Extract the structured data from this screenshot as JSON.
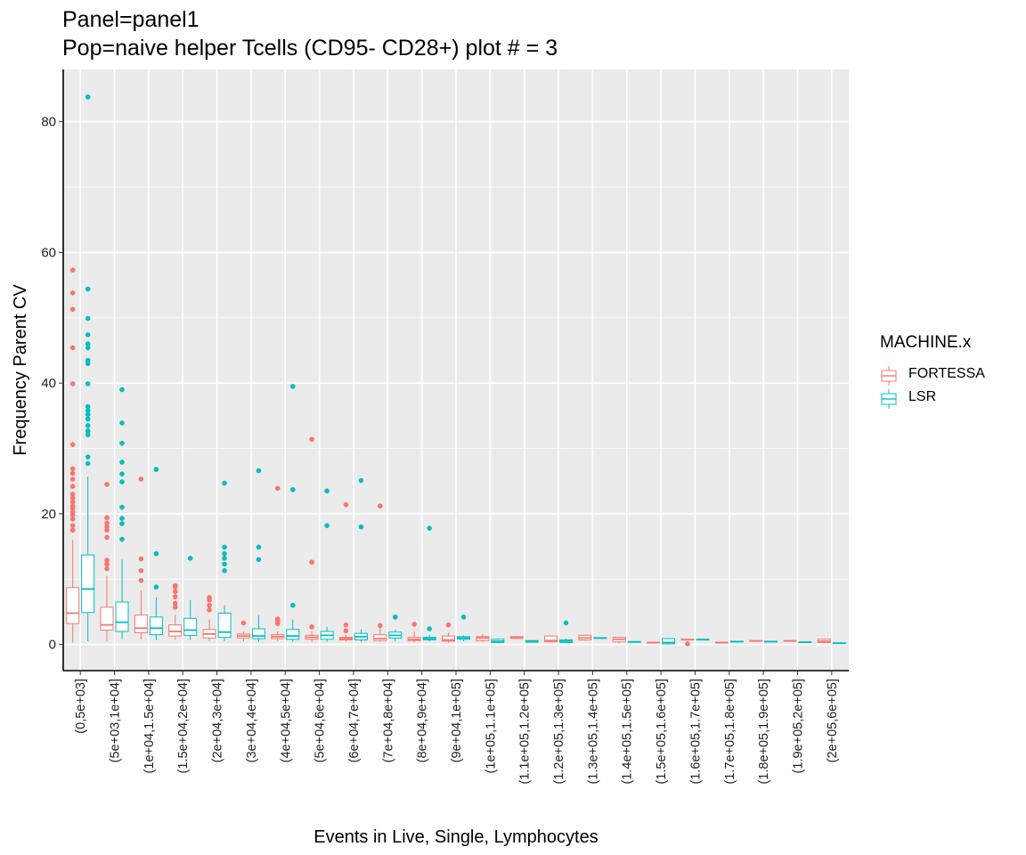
{
  "chart_data": {
    "type": "box",
    "title": "Panel=panel1",
    "subtitle": "Pop=naive helper Tcells (CD95- CD28+) plot # = 3",
    "xlabel": "Events in Live, Single, Lymphocytes",
    "ylabel": "Frequency Parent CV",
    "ylim": [
      -4,
      88
    ],
    "yticks": [
      0,
      20,
      40,
      60,
      80
    ],
    "grid": true,
    "legend": {
      "title": "MACHINE.x",
      "position": "right"
    },
    "categories": [
      "(0,5e+03]",
      "(5e+03,1e+04]",
      "(1e+04,1.5e+04]",
      "(1.5e+04,2e+04]",
      "(2e+04,3e+04]",
      "(3e+04,4e+04]",
      "(4e+04,5e+04]",
      "(5e+04,6e+04]",
      "(6e+04,7e+04]",
      "(7e+04,8e+04]",
      "(8e+04,9e+04]",
      "(9e+04,1e+05]",
      "(1e+05,1.1e+05]",
      "(1.1e+05,1.2e+05]",
      "(1.2e+05,1.3e+05]",
      "(1.3e+05,1.4e+05]",
      "(1.4e+05,1.5e+05]",
      "(1.5e+05,1.6e+05]",
      "(1.6e+05,1.7e+05]",
      "(1.7e+05,1.8e+05]",
      "(1.8e+05,1.9e+05]",
      "(1.9e+05,2e+05]",
      "(2e+05,6e+05]"
    ],
    "series": [
      {
        "name": "FORTESSA",
        "color": "#F8766D",
        "boxes": [
          {
            "cat": 0,
            "min": 0.3,
            "q1": 3.2,
            "median": 4.8,
            "q3": 8.7,
            "max": 16.0,
            "outliers": [
              17.5,
              18.2,
              19.2,
              19.8,
              20.3,
              20.8,
              21.2,
              21.8,
              22.4,
              23.0,
              24.2,
              25.3,
              26.2,
              26.9,
              30.6,
              39.9,
              45.4,
              51.3,
              53.8,
              57.3
            ]
          },
          {
            "cat": 1,
            "min": 0.5,
            "q1": 2.2,
            "median": 3.0,
            "q3": 5.7,
            "max": 10.5,
            "outliers": [
              11.6,
              12.3,
              12.9,
              16.4,
              17.5,
              18.0,
              18.6,
              19.4,
              24.5
            ]
          },
          {
            "cat": 2,
            "min": 0.8,
            "q1": 1.8,
            "median": 2.5,
            "q3": 4.5,
            "max": 8.3,
            "outliers": [
              9.8,
              11.3,
              13.1,
              25.3
            ]
          },
          {
            "cat": 3,
            "min": 0.7,
            "q1": 1.3,
            "median": 2.0,
            "q3": 3.0,
            "max": 4.5,
            "outliers": [
              5.7,
              6.3,
              7.3,
              8.1,
              8.8,
              9.0
            ]
          },
          {
            "cat": 4,
            "min": 0.5,
            "q1": 1.0,
            "median": 1.6,
            "q3": 2.3,
            "max": 3.8,
            "outliers": [
              5.3,
              6.0,
              6.8,
              7.2
            ]
          },
          {
            "cat": 5,
            "min": 0.5,
            "q1": 1.0,
            "median": 1.3,
            "q3": 1.6,
            "max": 2.0,
            "outliers": [
              3.3
            ]
          },
          {
            "cat": 6,
            "min": 0.5,
            "q1": 0.9,
            "median": 1.2,
            "q3": 1.5,
            "max": 2.0,
            "outliers": [
              3.2,
              3.6,
              3.9,
              23.9
            ]
          },
          {
            "cat": 7,
            "min": 0.4,
            "q1": 0.8,
            "median": 1.1,
            "q3": 1.4,
            "max": 2.0,
            "outliers": [
              2.7,
              12.6,
              31.4
            ]
          },
          {
            "cat": 8,
            "min": 0.4,
            "q1": 0.7,
            "median": 0.9,
            "q3": 1.1,
            "max": 1.5,
            "outliers": [
              2.1,
              3.0,
              21.4
            ]
          },
          {
            "cat": 9,
            "min": 0.4,
            "q1": 0.6,
            "median": 0.9,
            "q3": 1.5,
            "max": 2.6,
            "outliers": [
              2.9,
              21.2
            ]
          },
          {
            "cat": 10,
            "min": 0.4,
            "q1": 0.6,
            "median": 0.8,
            "q3": 1.1,
            "max": 2.0,
            "outliers": [
              3.1
            ]
          },
          {
            "cat": 11,
            "min": 0.3,
            "q1": 0.5,
            "median": 0.7,
            "q3": 1.3,
            "max": 1.8,
            "outliers": [
              3.0
            ]
          },
          {
            "cat": 12,
            "min": 0.4,
            "q1": 0.6,
            "median": 1.0,
            "q3": 1.2,
            "max": 1.6,
            "outliers": []
          },
          {
            "cat": 13,
            "min": 0.9,
            "q1": 0.95,
            "median": 1.0,
            "q3": 1.2,
            "max": 1.3,
            "outliers": []
          },
          {
            "cat": 14,
            "min": 0.3,
            "q1": 0.4,
            "median": 0.6,
            "q3": 1.3,
            "max": 1.4,
            "outliers": []
          },
          {
            "cat": 15,
            "min": 0.6,
            "q1": 0.7,
            "median": 1.0,
            "q3": 1.4,
            "max": 1.5,
            "outliers": []
          },
          {
            "cat": 16,
            "min": 0.2,
            "q1": 0.4,
            "median": 0.8,
            "q3": 1.1,
            "max": 1.2,
            "outliers": []
          },
          {
            "cat": 17,
            "min": 0.2,
            "q1": 0.25,
            "median": 0.3,
            "q3": 0.35,
            "max": 0.4,
            "outliers": []
          },
          {
            "cat": 18,
            "min": 0.7,
            "q1": 0.7,
            "median": 0.75,
            "q3": 0.8,
            "max": 0.8,
            "outliers": [
              0.1
            ]
          },
          {
            "cat": 19,
            "min": 0.3,
            "q1": 0.3,
            "median": 0.3,
            "q3": 0.35,
            "max": 0.35,
            "outliers": []
          },
          {
            "cat": 20,
            "min": 0.5,
            "q1": 0.5,
            "median": 0.55,
            "q3": 0.6,
            "max": 0.6,
            "outliers": []
          },
          {
            "cat": 21,
            "min": 0.5,
            "q1": 0.5,
            "median": 0.55,
            "q3": 0.6,
            "max": 0.6,
            "outliers": []
          },
          {
            "cat": 22,
            "min": 0.2,
            "q1": 0.3,
            "median": 0.5,
            "q3": 0.8,
            "max": 0.9,
            "outliers": []
          }
        ]
      },
      {
        "name": "LSR",
        "color": "#00BFC4",
        "boxes": [
          {
            "cat": 0,
            "min": 0.5,
            "q1": 4.9,
            "median": 8.5,
            "q3": 13.7,
            "max": 25.7,
            "outliers": [
              27.7,
              28.7,
              32.1,
              32.7,
              33.5,
              34.5,
              35.2,
              35.8,
              36.4,
              39.9,
              43.0,
              43.5,
              45.4,
              46.0,
              47.4,
              49.9,
              54.4,
              83.8
            ]
          },
          {
            "cat": 1,
            "min": 0.8,
            "q1": 2.0,
            "median": 3.4,
            "q3": 6.5,
            "max": 13.0,
            "outliers": [
              16.1,
              18.5,
              19.3,
              21.0,
              24.9,
              26.1,
              27.9,
              30.8,
              33.9,
              39.0
            ]
          },
          {
            "cat": 2,
            "min": 0.7,
            "q1": 1.5,
            "median": 2.5,
            "q3": 4.2,
            "max": 7.2,
            "outliers": [
              8.8,
              13.9,
              26.8
            ]
          },
          {
            "cat": 3,
            "min": 0.7,
            "q1": 1.4,
            "median": 2.2,
            "q3": 4.0,
            "max": 6.8,
            "outliers": [
              13.2
            ]
          },
          {
            "cat": 4,
            "min": 0.5,
            "q1": 1.1,
            "median": 1.9,
            "q3": 4.8,
            "max": 6.0,
            "outliers": [
              11.3,
              12.3,
              13.2,
              13.9,
              14.9,
              24.7
            ]
          },
          {
            "cat": 5,
            "min": 0.4,
            "q1": 0.9,
            "median": 1.3,
            "q3": 2.4,
            "max": 4.5,
            "outliers": [
              13.0,
              14.9,
              26.6
            ]
          },
          {
            "cat": 6,
            "min": 0.4,
            "q1": 0.8,
            "median": 1.3,
            "q3": 2.3,
            "max": 3.8,
            "outliers": [
              6.0,
              23.7,
              39.5
            ]
          },
          {
            "cat": 7,
            "min": 0.4,
            "q1": 0.8,
            "median": 1.4,
            "q3": 2.0,
            "max": 2.7,
            "outliers": [
              18.2,
              23.5
            ]
          },
          {
            "cat": 8,
            "min": 0.4,
            "q1": 0.7,
            "median": 1.2,
            "q3": 1.7,
            "max": 2.3,
            "outliers": [
              18.0,
              25.1
            ]
          },
          {
            "cat": 9,
            "min": 0.5,
            "q1": 1.0,
            "median": 1.4,
            "q3": 1.9,
            "max": 2.3,
            "outliers": [
              4.2
            ]
          },
          {
            "cat": 10,
            "min": 0.5,
            "q1": 0.7,
            "median": 0.9,
            "q3": 1.1,
            "max": 1.5,
            "outliers": [
              2.4,
              17.8
            ]
          },
          {
            "cat": 11,
            "min": 0.5,
            "q1": 0.8,
            "median": 1.0,
            "q3": 1.2,
            "max": 1.4,
            "outliers": [
              4.2
            ]
          },
          {
            "cat": 12,
            "min": 0.2,
            "q1": 0.3,
            "median": 0.5,
            "q3": 0.8,
            "max": 0.9,
            "outliers": []
          },
          {
            "cat": 13,
            "min": 0.3,
            "q1": 0.35,
            "median": 0.45,
            "q3": 0.6,
            "max": 0.65,
            "outliers": []
          },
          {
            "cat": 14,
            "min": 0.2,
            "q1": 0.3,
            "median": 0.5,
            "q3": 0.7,
            "max": 0.9,
            "outliers": [
              3.3
            ]
          },
          {
            "cat": 15,
            "min": 0.9,
            "q1": 0.95,
            "median": 1.0,
            "q3": 1.05,
            "max": 1.1,
            "outliers": []
          },
          {
            "cat": 16,
            "min": 0.3,
            "q1": 0.35,
            "median": 0.4,
            "q3": 0.45,
            "max": 0.5,
            "outliers": []
          },
          {
            "cat": 17,
            "min": 0.0,
            "q1": 0.1,
            "median": 0.3,
            "q3": 0.9,
            "max": 1.0,
            "outliers": []
          },
          {
            "cat": 18,
            "min": 0.7,
            "q1": 0.7,
            "median": 0.75,
            "q3": 0.8,
            "max": 0.8,
            "outliers": []
          },
          {
            "cat": 19,
            "min": 0.4,
            "q1": 0.4,
            "median": 0.45,
            "q3": 0.5,
            "max": 0.5,
            "outliers": []
          },
          {
            "cat": 20,
            "min": 0.4,
            "q1": 0.4,
            "median": 0.45,
            "q3": 0.5,
            "max": 0.5,
            "outliers": []
          },
          {
            "cat": 21,
            "min": 0.3,
            "q1": 0.3,
            "median": 0.35,
            "q3": 0.4,
            "max": 0.4,
            "outliers": []
          },
          {
            "cat": 22,
            "min": 0.1,
            "q1": 0.15,
            "median": 0.2,
            "q3": 0.25,
            "max": 0.3,
            "outliers": []
          }
        ]
      }
    ]
  }
}
